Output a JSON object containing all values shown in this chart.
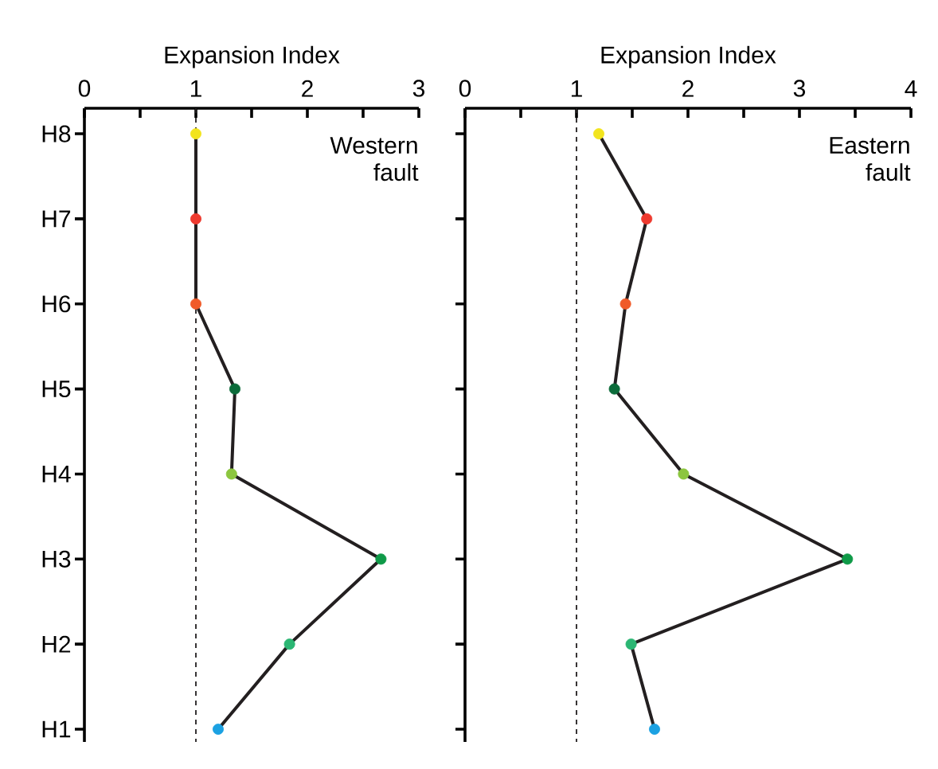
{
  "chart_data": [
    {
      "type": "line",
      "orientation": "horizontal",
      "xlabel": "Expansion Index",
      "annotations": [
        "Western fault"
      ],
      "categories": [
        "H8",
        "H7",
        "H6",
        "H5",
        "H4",
        "H3",
        "H2",
        "H1"
      ],
      "values": [
        1.0,
        1.0,
        1.0,
        1.35,
        1.32,
        2.66,
        1.84,
        1.2
      ],
      "color": "#231f20",
      "colors": [
        "#f2e41e",
        "#ee3a2f",
        "#f05a28",
        "#0b6b3a",
        "#8cc63f",
        "#0f9a48",
        "#2bb673",
        "#1ba1e2"
      ],
      "marker": "circle",
      "xlim": [
        0,
        3
      ],
      "xticks": [
        0,
        {
          "value": 0.5,
          "label": null
        },
        1,
        {
          "value": 1.5,
          "label": null
        },
        2,
        {
          "value": 2.5,
          "label": null
        },
        3
      ],
      "ref_lines": [
        {
          "axis": "x",
          "value": 1,
          "line_style": "dashed",
          "color": "#231f20"
        }
      ],
      "grid": false
    },
    {
      "type": "line",
      "orientation": "horizontal",
      "xlabel": "Expansion Index",
      "annotations": [
        "Eastern fault"
      ],
      "categories": [
        null,
        null,
        null,
        null,
        null,
        null,
        null,
        null
      ],
      "values": [
        1.2,
        1.63,
        1.44,
        1.34,
        1.96,
        3.43,
        1.49,
        1.7
      ],
      "color": "#231f20",
      "colors": [
        "#f2e41e",
        "#ee3a2f",
        "#f05a28",
        "#0b6b3a",
        "#8cc63f",
        "#0f9a48",
        "#2bb673",
        "#1ba1e2"
      ],
      "marker": "circle",
      "xlim": [
        0,
        4
      ],
      "xticks": [
        0,
        {
          "value": 0.5,
          "label": null
        },
        1,
        {
          "value": 1.5,
          "label": null
        },
        2,
        {
          "value": 2.5,
          "label": null
        },
        3,
        {
          "value": 3.5,
          "label": null
        },
        4
      ],
      "ref_lines": [
        {
          "axis": "x",
          "value": 1,
          "line_style": "dashed",
          "color": "#231f20"
        }
      ],
      "grid": false
    }
  ]
}
